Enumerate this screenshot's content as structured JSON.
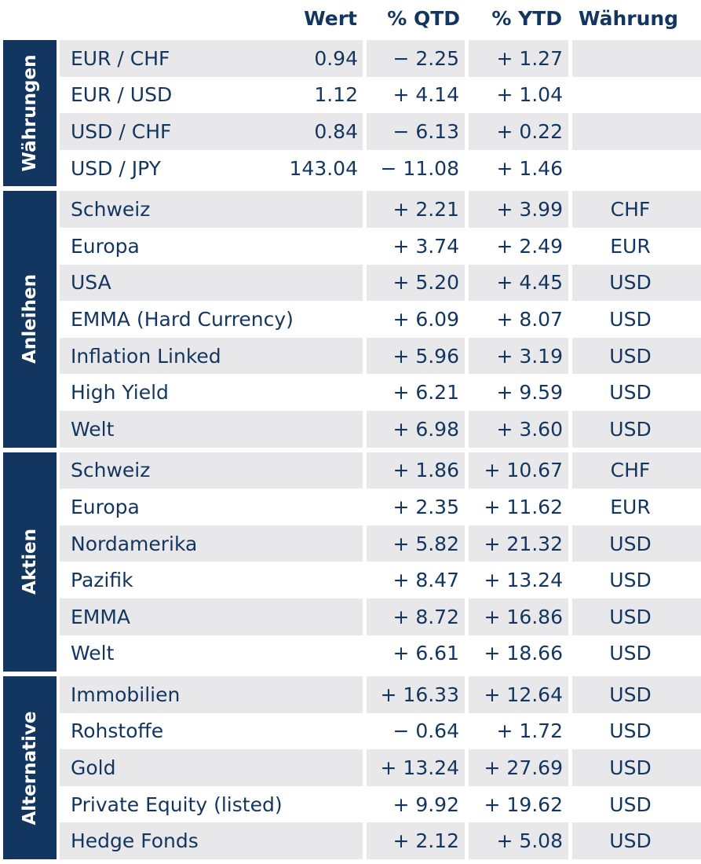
{
  "header": {
    "wert": "Wert",
    "qtd": "% QTD",
    "ytd": "% YTD",
    "currency": "Währung"
  },
  "groups": [
    {
      "label": "Währungen",
      "rows": [
        {
          "name": "EUR / CHF",
          "wert": "0.94",
          "qtd": "− 2.25",
          "ytd": "+ 1.27",
          "cur": ""
        },
        {
          "name": "EUR / USD",
          "wert": "1.12",
          "qtd": "+ 4.14",
          "ytd": "+ 1.04",
          "cur": ""
        },
        {
          "name": "USD / CHF",
          "wert": "0.84",
          "qtd": "− 6.13",
          "ytd": "+ 0.22",
          "cur": ""
        },
        {
          "name": "USD / JPY",
          "wert": "143.04",
          "qtd": "− 11.08",
          "ytd": "+ 1.46",
          "cur": ""
        }
      ]
    },
    {
      "label": "Anleihen",
      "rows": [
        {
          "name": "Schweiz",
          "wert": "",
          "qtd": "+ 2.21",
          "ytd": "+ 3.99",
          "cur": "CHF"
        },
        {
          "name": "Europa",
          "wert": "",
          "qtd": "+ 3.74",
          "ytd": "+ 2.49",
          "cur": "EUR"
        },
        {
          "name": "USA",
          "wert": "",
          "qtd": "+ 5.20",
          "ytd": "+ 4.45",
          "cur": "USD"
        },
        {
          "name": "EMMA (Hard Currency)",
          "wert": "",
          "qtd": "+ 6.09",
          "ytd": "+ 8.07",
          "cur": "USD"
        },
        {
          "name": "Inflation Linked",
          "wert": "",
          "qtd": "+ 5.96",
          "ytd": "+ 3.19",
          "cur": "USD"
        },
        {
          "name": "High Yield",
          "wert": "",
          "qtd": "+ 6.21",
          "ytd": "+ 9.59",
          "cur": "USD"
        },
        {
          "name": "Welt",
          "wert": "",
          "qtd": "+ 6.98",
          "ytd": "+ 3.60",
          "cur": "USD"
        }
      ]
    },
    {
      "label": "Aktien",
      "rows": [
        {
          "name": "Schweiz",
          "wert": "",
          "qtd": "+ 1.86",
          "ytd": "+ 10.67",
          "cur": "CHF"
        },
        {
          "name": "Europa",
          "wert": "",
          "qtd": "+ 2.35",
          "ytd": "+ 11.62",
          "cur": "EUR"
        },
        {
          "name": "Nordamerika",
          "wert": "",
          "qtd": "+ 5.82",
          "ytd": "+ 21.32",
          "cur": "USD"
        },
        {
          "name": "Pazifik",
          "wert": "",
          "qtd": "+ 8.47",
          "ytd": "+ 13.24",
          "cur": "USD"
        },
        {
          "name": "EMMA",
          "wert": "",
          "qtd": "+ 8.72",
          "ytd": "+ 16.86",
          "cur": "USD"
        },
        {
          "name": "Welt",
          "wert": "",
          "qtd": "+ 6.61",
          "ytd": "+ 18.66",
          "cur": "USD"
        }
      ]
    },
    {
      "label": "Alternative",
      "rows": [
        {
          "name": "Immobilien",
          "wert": "",
          "qtd": "+ 16.33",
          "ytd": "+ 12.64",
          "cur": "USD"
        },
        {
          "name": "Rohstoffe",
          "wert": "",
          "qtd": "− 0.64",
          "ytd": "+ 1.72",
          "cur": "USD"
        },
        {
          "name": "Gold",
          "wert": "",
          "qtd": "+ 13.24",
          "ytd": "+ 27.69",
          "cur": "USD"
        },
        {
          "name": "Private Equity (listed)",
          "wert": "",
          "qtd": "+ 9.92",
          "ytd": "+ 19.62",
          "cur": "USD"
        },
        {
          "name": "Hedge Fonds",
          "wert": "",
          "qtd": "+ 2.12",
          "ytd": "+ 5.08",
          "cur": "USD"
        }
      ]
    }
  ],
  "colors": {
    "navy": "#12365f",
    "row_shade": "#e8e8ea"
  }
}
